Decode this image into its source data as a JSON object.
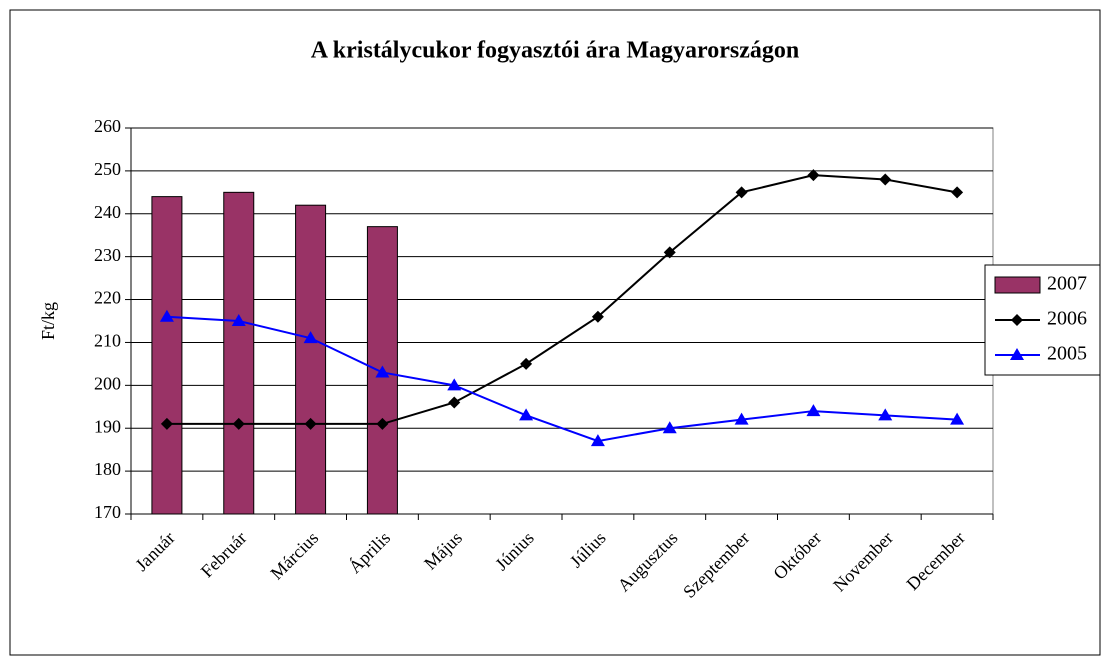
{
  "chart_data": {
    "type": "combo",
    "title": "A kristálycukor fogyasztói ára Magyarországon",
    "y_label": "Ft/kg",
    "categories": [
      "Január",
      "Február",
      "Március",
      "Április",
      "Május",
      "Június",
      "Július",
      "Augusztus",
      "Szeptember",
      "Október",
      "November",
      "December"
    ],
    "series": [
      {
        "name": "2007",
        "type": "bar",
        "color": "#993366",
        "values": [
          244,
          245,
          242,
          237,
          null,
          null,
          null,
          null,
          null,
          null,
          null,
          null
        ]
      },
      {
        "name": "2006",
        "type": "line",
        "marker": "diamond",
        "color": "#000000",
        "values": [
          191,
          191,
          191,
          191,
          196,
          205,
          216,
          231,
          245,
          249,
          248,
          245
        ]
      },
      {
        "name": "2005",
        "type": "line",
        "marker": "triangle",
        "color": "#0000ff",
        "values": [
          216,
          215,
          211,
          203,
          200,
          193,
          187,
          190,
          192,
          194,
          193,
          192
        ]
      }
    ],
    "ylim": [
      170,
      260
    ],
    "yticks": [
      170,
      180,
      190,
      200,
      210,
      220,
      230,
      240,
      250,
      260
    ],
    "grid": true,
    "legend": "right"
  }
}
